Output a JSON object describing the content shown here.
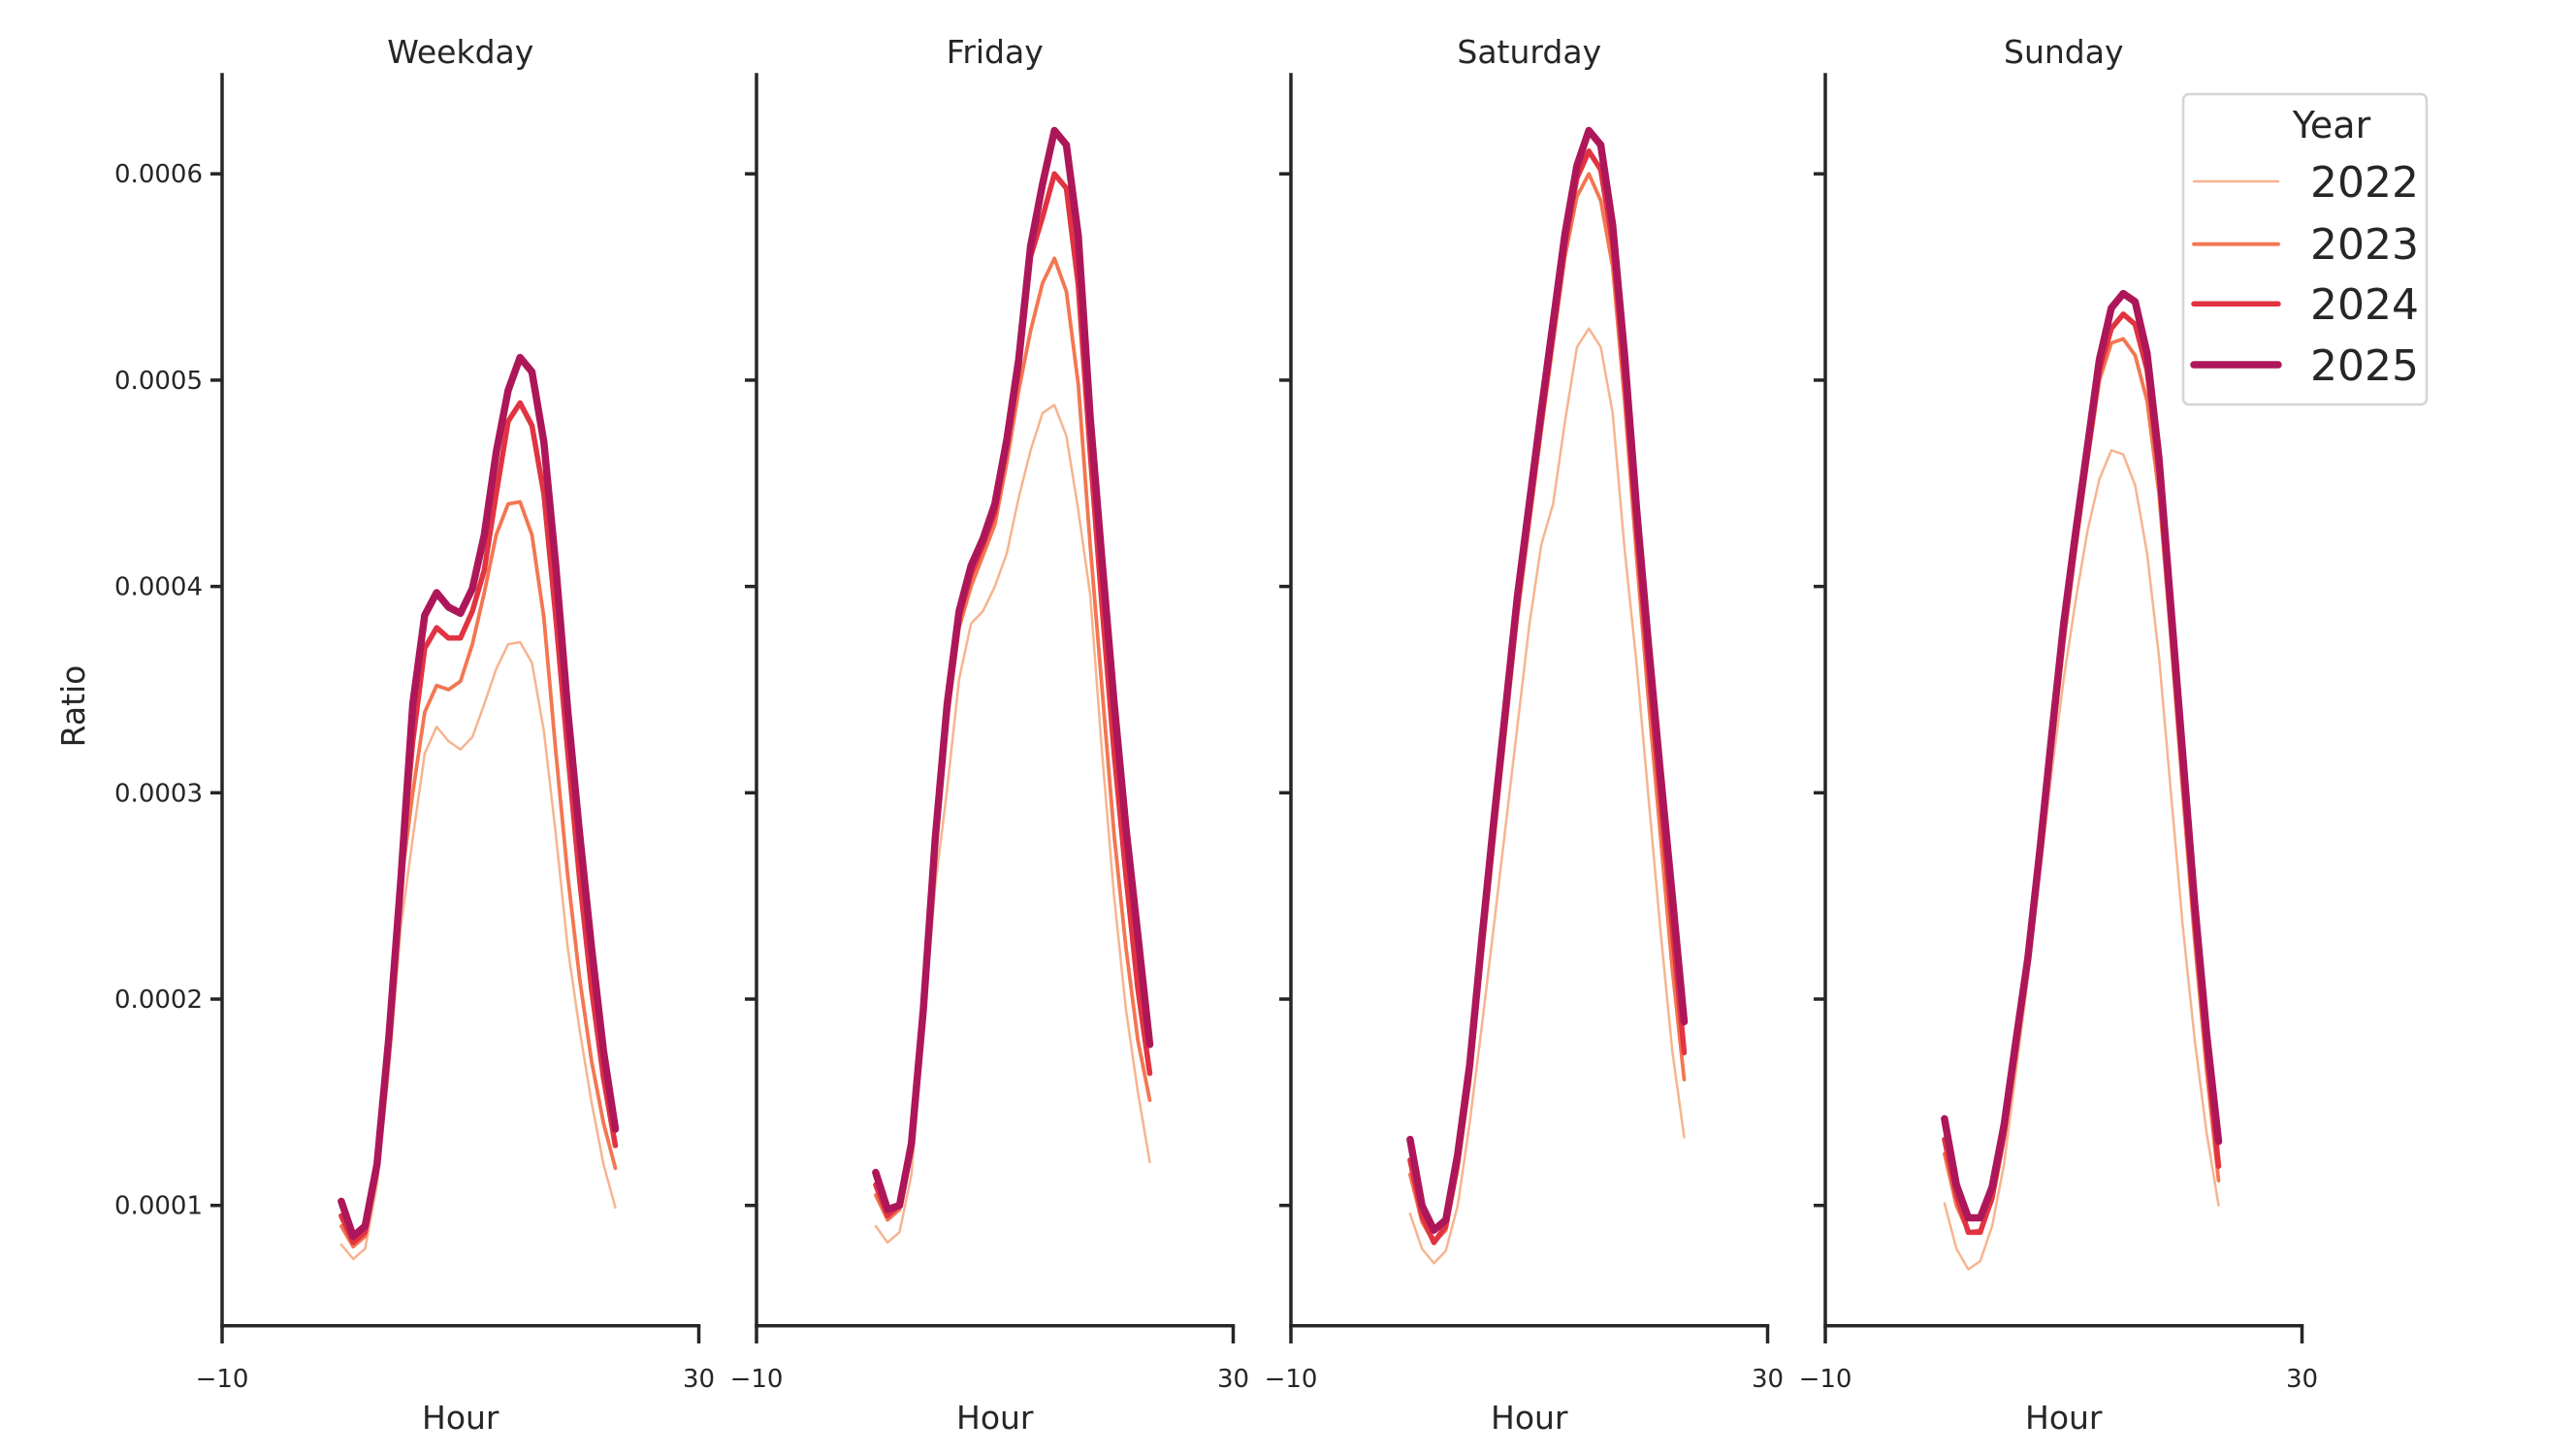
{
  "figure": {
    "ylabel": "Ratio",
    "xlabel": "Hour",
    "legend_title": "Year"
  },
  "colors": {
    "2022": "#f6b48f",
    "2023": "#f37651",
    "2024": "#e13342",
    "2025": "#ad1759",
    "axis": "#262626",
    "legend_border": "#d4d4d4"
  },
  "chart_data": {
    "type": "line",
    "title": "",
    "xlabel": "Hour",
    "ylabel": "Ratio",
    "xlim": [
      -10,
      30
    ],
    "ylim": [
      4.21e-05,
      0.000647
    ],
    "xticks": [
      -10,
      30
    ],
    "xtick_labels": [
      "−10",
      "30"
    ],
    "yticks": [
      0.0001,
      0.0002,
      0.0003,
      0.0004,
      0.0005,
      0.0006
    ],
    "ytick_labels": [
      "0.0001",
      "0.0002",
      "0.0003",
      "0.0004",
      "0.0005",
      "0.0006"
    ],
    "grid": false,
    "legend": {
      "title": "Year",
      "position": "upper right",
      "entries": [
        "2022",
        "2023",
        "2024",
        "2025"
      ]
    },
    "x": [
      0,
      1,
      2,
      3,
      4,
      5,
      6,
      7,
      8,
      9,
      10,
      11,
      12,
      13,
      14,
      15,
      16,
      17,
      18,
      19,
      20,
      21,
      22,
      23
    ],
    "panels": [
      {
        "title": "Weekday",
        "series": [
          {
            "name": "2022",
            "values": [
              8.1e-05,
              7.4e-05,
              7.9e-05,
              0.00011,
              0.000165,
              0.000235,
              0.000278,
              0.000319,
              0.000332,
              0.000325,
              0.000321,
              0.000327,
              0.000343,
              0.00036,
              0.000372,
              0.000373,
              0.000363,
              0.00033,
              0.00028,
              0.000225,
              0.000185,
              0.00015,
              0.00012,
              9.9e-05
            ]
          },
          {
            "name": "2023",
            "values": [
              9e-05,
              8e-05,
              8.5e-05,
              0.000115,
              0.000175,
              0.000255,
              0.0003,
              0.000339,
              0.000352,
              0.00035,
              0.000354,
              0.000372,
              0.000397,
              0.000425,
              0.00044,
              0.000441,
              0.000425,
              0.000385,
              0.00032,
              0.00026,
              0.00021,
              0.00017,
              0.00014,
              0.000118
            ]
          },
          {
            "name": "2024",
            "values": [
              9.5e-05,
              8.2e-05,
              8.7e-05,
              0.000118,
              0.000178,
              0.000262,
              0.000325,
              0.00037,
              0.00038,
              0.000375,
              0.000375,
              0.000388,
              0.000408,
              0.000445,
              0.00048,
              0.000489,
              0.000478,
              0.000445,
              0.000385,
              0.00032,
              0.000258,
              0.000205,
              0.000162,
              0.000129
            ]
          },
          {
            "name": "2025",
            "values": [
              0.000102,
              8.5e-05,
              9e-05,
              0.00012,
              0.000182,
              0.000258,
              0.000343,
              0.000386,
              0.000397,
              0.00039,
              0.000387,
              0.000399,
              0.000425,
              0.000465,
              0.000495,
              0.000511,
              0.000504,
              0.00047,
              0.00041,
              0.00034,
              0.00028,
              0.000225,
              0.000175,
              0.000137
            ]
          }
        ]
      },
      {
        "title": "Friday",
        "series": [
          {
            "name": "2022",
            "values": [
              9e-05,
              8.2e-05,
              8.7e-05,
              0.000115,
              0.000185,
              0.000255,
              0.000302,
              0.000355,
              0.000382,
              0.000388,
              0.0004,
              0.000416,
              0.000443,
              0.000466,
              0.000484,
              0.000488,
              0.000473,
              0.000437,
              0.000396,
              0.000319,
              0.00025,
              0.000195,
              0.000155,
              0.000121
            ]
          },
          {
            "name": "2023",
            "values": [
              0.000105,
              9.3e-05,
              9.8e-05,
              0.000125,
              0.00019,
              0.00027,
              0.000335,
              0.00038,
              0.0004,
              0.000415,
              0.00043,
              0.00046,
              0.000495,
              0.000524,
              0.000547,
              0.000559,
              0.000543,
              0.000498,
              0.00042,
              0.00035,
              0.00028,
              0.000225,
              0.00018,
              0.000151
            ]
          },
          {
            "name": "2024",
            "values": [
              0.00011,
              9.5e-05,
              0.0001,
              0.000128,
              0.000193,
              0.000275,
              0.00034,
              0.000385,
              0.000406,
              0.00042,
              0.000436,
              0.000468,
              0.000505,
              0.00056,
              0.000579,
              0.0006,
              0.000593,
              0.000546,
              0.000465,
              0.00039,
              0.00032,
              0.00026,
              0.000205,
              0.000164
            ]
          },
          {
            "name": "2025",
            "values": [
              0.000116,
              9.8e-05,
              0.0001,
              0.00013,
              0.000195,
              0.000278,
              0.000343,
              0.000388,
              0.00041,
              0.000423,
              0.00044,
              0.000471,
              0.00051,
              0.000565,
              0.000595,
              0.000621,
              0.000614,
              0.00057,
              0.000482,
              0.000412,
              0.000344,
              0.000283,
              0.000231,
              0.000178
            ]
          }
        ]
      },
      {
        "title": "Saturday",
        "series": [
          {
            "name": "2022",
            "values": [
              9.6e-05,
              7.9e-05,
              7.2e-05,
              7.8e-05,
              0.0001,
              0.00014,
              0.000186,
              0.000234,
              0.000283,
              0.000332,
              0.000381,
              0.00042,
              0.00044,
              0.00048,
              0.000516,
              0.000525,
              0.000516,
              0.000484,
              0.000418,
              0.000363,
              0.000298,
              0.000234,
              0.000175,
              0.000133
            ]
          },
          {
            "name": "2023",
            "values": [
              0.000115,
              9.2e-05,
              8.2e-05,
              8.8e-05,
              0.000118,
              0.00016,
              0.000218,
              0.000275,
              0.00033,
              0.000385,
              0.00043,
              0.000475,
              0.000518,
              0.00056,
              0.000589,
              0.0006,
              0.000587,
              0.000555,
              0.00049,
              0.000415,
              0.000345,
              0.00028,
              0.000215,
              0.000161
            ]
          },
          {
            "name": "2024",
            "values": [
              0.000122,
              9.5e-05,
              8.2e-05,
              9e-05,
              0.000121,
              0.000164,
              0.000224,
              0.000281,
              0.000336,
              0.000391,
              0.000436,
              0.00048,
              0.000523,
              0.000566,
              0.000598,
              0.000611,
              0.000602,
              0.000566,
              0.000502,
              0.000428,
              0.00036,
              0.000298,
              0.000235,
              0.000174
            ]
          },
          {
            "name": "2025",
            "values": [
              0.000132,
              0.0001,
              8.8e-05,
              9.3e-05,
              0.000125,
              0.000168,
              0.000228,
              0.000285,
              0.00034,
              0.000395,
              0.00044,
              0.000485,
              0.000528,
              0.000571,
              0.000604,
              0.000621,
              0.000614,
              0.000575,
              0.000512,
              0.000438,
              0.000372,
              0.00031,
              0.00025,
              0.000189
            ]
          }
        ]
      },
      {
        "title": "Sunday",
        "series": [
          {
            "name": "2022",
            "values": [
              0.000101,
              7.9e-05,
              6.9e-05,
              7.3e-05,
              9e-05,
              0.00012,
              0.000165,
              0.00021,
              0.00026,
              0.00031,
              0.000355,
              0.000393,
              0.000427,
              0.000452,
              0.000466,
              0.000464,
              0.000449,
              0.000416,
              0.000366,
              0.0003,
              0.000235,
              0.00018,
              0.000135,
              0.0001
            ]
          },
          {
            "name": "2023",
            "values": [
              0.000125,
              0.0001,
              8.7e-05,
              8.8e-05,
              0.000102,
              0.000132,
              0.000172,
              0.000215,
              0.000265,
              0.00032,
              0.000372,
              0.000418,
              0.00046,
              0.0005,
              0.000518,
              0.00052,
              0.000512,
              0.00049,
              0.000445,
              0.000375,
              0.0003,
              0.000228,
              0.000165,
              0.000112
            ]
          },
          {
            "name": "2024",
            "values": [
              0.000132,
              0.000105,
              8.7e-05,
              8.7e-05,
              0.000104,
              0.000135,
              0.000176,
              0.000218,
              0.000268,
              0.000325,
              0.000378,
              0.000422,
              0.000464,
              0.000505,
              0.000525,
              0.000532,
              0.000527,
              0.000505,
              0.000455,
              0.000383,
              0.00031,
              0.000238,
              0.000175,
              0.000119
            ]
          },
          {
            "name": "2025",
            "values": [
              0.000142,
              0.00011,
              9.4e-05,
              9.4e-05,
              0.000109,
              0.000139,
              0.00018,
              0.00022,
              0.000272,
              0.000328,
              0.000382,
              0.000426,
              0.000468,
              0.00051,
              0.000535,
              0.000542,
              0.000538,
              0.000513,
              0.000462,
              0.00039,
              0.000318,
              0.000246,
              0.000183,
              0.000131
            ]
          }
        ]
      }
    ]
  }
}
